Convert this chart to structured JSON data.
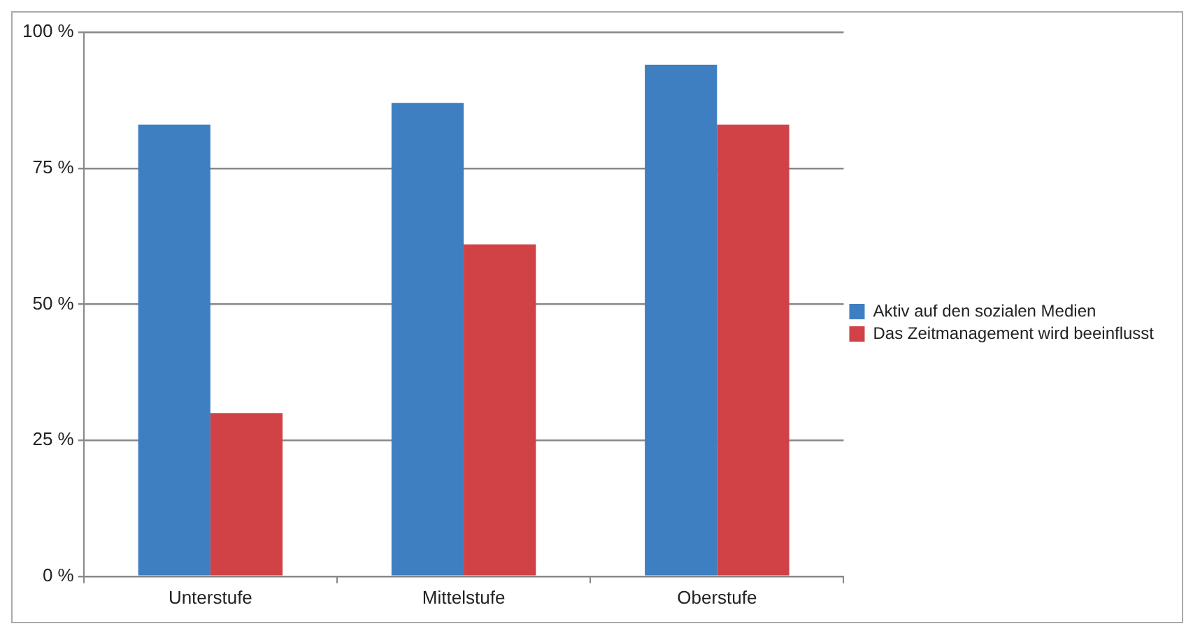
{
  "chart_data": {
    "type": "bar",
    "categories": [
      "Unterstufe",
      "Mittelstufe",
      "Oberstufe"
    ],
    "series": [
      {
        "name": "Aktiv auf den sozialen Medien",
        "color": "#3d7fc1",
        "values": [
          83,
          87,
          94
        ]
      },
      {
        "name": "Das Zeitmanagement wird beeinflusst",
        "color": "#d04245",
        "values": [
          30,
          61,
          83
        ]
      }
    ],
    "ylim": [
      0,
      100
    ],
    "yticks": [
      {
        "value": 0,
        "label": "0 %"
      },
      {
        "value": 25,
        "label": "25 %"
      },
      {
        "value": 50,
        "label": "50 %"
      },
      {
        "value": 75,
        "label": "75 %"
      },
      {
        "value": 100,
        "label": "100 %"
      }
    ],
    "grid": "y",
    "legend": "right"
  }
}
